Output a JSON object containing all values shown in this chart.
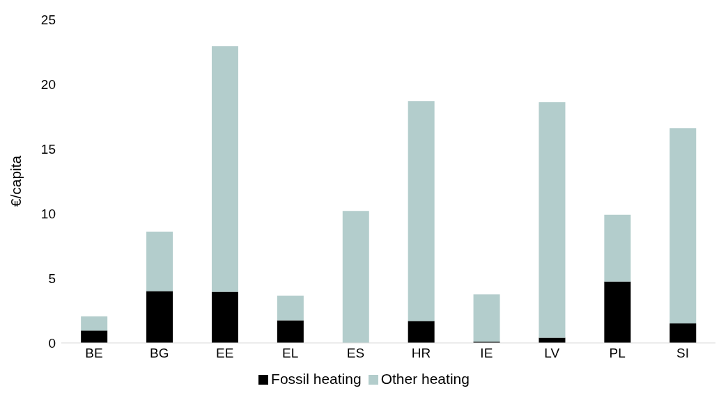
{
  "chart_data": {
    "type": "bar",
    "ylabel": "€/capita",
    "categories": [
      "BE",
      "BG",
      "EE",
      "EL",
      "ES",
      "HR",
      "IE",
      "LV",
      "PL",
      "SI"
    ],
    "series": [
      {
        "name": "Fossil heating",
        "color": "#000000",
        "values": [
          0.95,
          4.0,
          3.95,
          1.75,
          null,
          1.7,
          0.1,
          0.4,
          4.75,
          1.5
        ]
      },
      {
        "name": "Other heating",
        "color": "#b3cdcc",
        "values": [
          1.1,
          4.6,
          19.0,
          1.9,
          10.2,
          17.0,
          3.65,
          18.2,
          5.15,
          15.1
        ]
      }
    ],
    "stacked": true,
    "ylim": [
      0,
      25
    ],
    "yticks": [
      0,
      5,
      10,
      15,
      20,
      25
    ],
    "grid": false,
    "legend": "bottom"
  }
}
